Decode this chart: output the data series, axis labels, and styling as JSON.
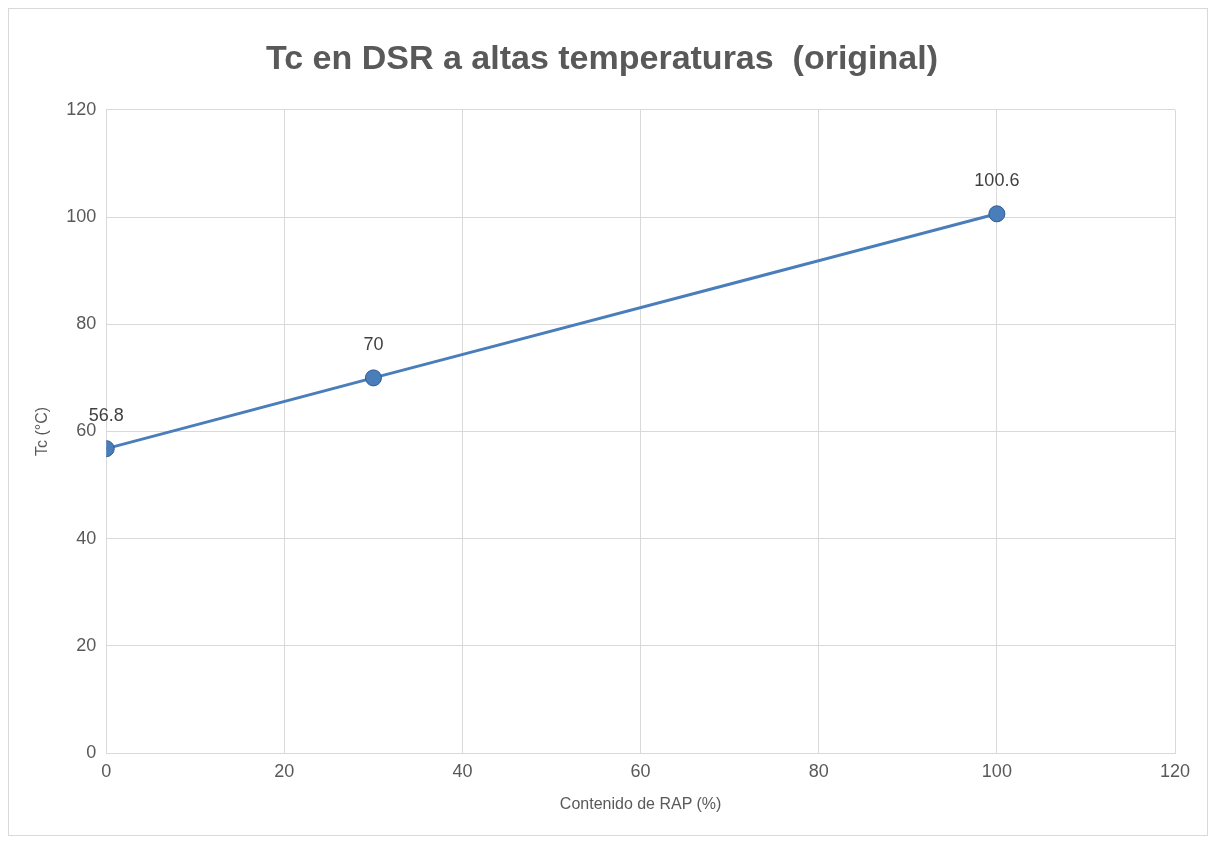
{
  "chart_data": {
    "type": "line",
    "title": "Tc en DSR a altas temperaturas  (original)",
    "xlabel": "Contenido de RAP (%)",
    "ylabel": "Tc (°C)",
    "x": [
      0,
      30,
      100
    ],
    "series": [
      {
        "color": "#4a7ebb",
        "values": [
          56.8,
          70,
          100.6
        ]
      }
    ],
    "xlim": [
      0,
      120
    ],
    "xticks": [
      0,
      20,
      40,
      60,
      80,
      100,
      120
    ],
    "ylim": [
      0,
      120
    ],
    "yticks": [
      0,
      20,
      40,
      60,
      80,
      100,
      120
    ],
    "grid": true,
    "legend": false,
    "marker": "circle",
    "line_style": "solid",
    "data_labels": true
  }
}
